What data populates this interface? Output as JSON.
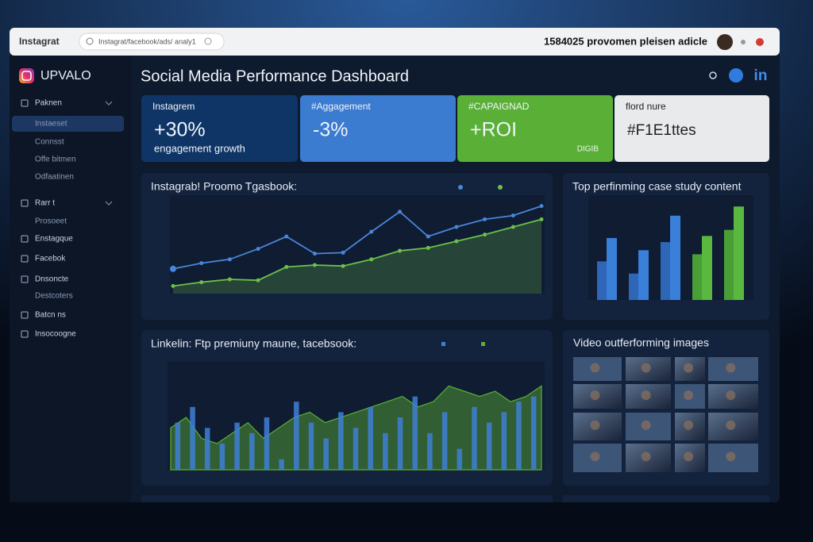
{
  "browser": {
    "tab": "Instagrat",
    "address": "Instagrat/facebook/ads/ analy1",
    "header_text": "1584025 provomen pleisen adicle"
  },
  "sidebar": {
    "brand": "UPVALO",
    "items": [
      "Paknen",
      "Instaeset",
      "Connsst",
      "Offe bitmen",
      "Odfaatinen",
      "Rarr t",
      "Prosoeet",
      "Enstagque",
      "Facebok",
      "Dnsoncte",
      "Destcoters",
      "Batcn ns",
      "Insocoogne"
    ]
  },
  "header": {
    "title": "Social Media Performance Dashboard",
    "linkedin": "in"
  },
  "kpis": [
    {
      "label": "Instagrem",
      "value": "+30%",
      "sub": "engagement growth"
    },
    {
      "label": "#Aggagement",
      "value": "-3%"
    },
    {
      "label": "#CAPAIGNAD",
      "value": "+ROI",
      "sub": "DIGIB"
    },
    {
      "label": "flord nure",
      "value": "#F1E1ttes"
    }
  ],
  "charts": [
    {
      "type": "line",
      "title": "Instagrab! Proomo Tgasbook:",
      "ylim": [
        0,
        100
      ],
      "series": [
        {
          "color": "#4a86d8",
          "values": [
            26,
            32,
            36,
            47,
            60,
            42,
            43,
            65,
            86,
            60,
            70,
            78,
            82,
            92
          ]
        },
        {
          "color": "#6cc04a",
          "values": [
            8,
            12,
            15,
            14,
            28,
            30,
            29,
            36,
            45,
            48,
            55,
            62,
            70,
            78
          ]
        }
      ]
    },
    {
      "type": "bar",
      "title": "Top perfinming case study content",
      "ylim": [
        0,
        100
      ],
      "values": [
        38,
        61,
        26,
        49,
        57,
        83,
        45,
        63,
        69,
        92
      ],
      "colors": [
        "#2f66b8",
        "#3a7fd8",
        "#2f66b8",
        "#3a7fd8",
        "#2f66b8",
        "#3a7fd8",
        "#4a9e36",
        "#5ab83f",
        "#4a9e36",
        "#5ab83f"
      ]
    },
    {
      "type": "combo",
      "title": "Linkelin: Ftp premiuny maune, tacebsook:",
      "ylim": [
        0,
        100
      ],
      "bars": {
        "color": "#3f7fd6",
        "values": [
          45,
          60,
          40,
          25,
          45,
          35,
          50,
          10,
          65,
          45,
          30,
          55,
          40,
          60,
          35,
          50,
          70,
          35,
          55,
          20,
          60,
          45,
          55,
          65,
          70
        ]
      },
      "area": {
        "color": "#5ab036",
        "values": [
          40,
          50,
          30,
          25,
          35,
          45,
          30,
          40,
          50,
          55,
          45,
          50,
          55,
          60,
          65,
          70,
          60,
          65,
          80,
          75,
          70,
          75,
          65,
          70,
          80
        ]
      }
    }
  ],
  "media": {
    "title": "Video outferforming images"
  }
}
